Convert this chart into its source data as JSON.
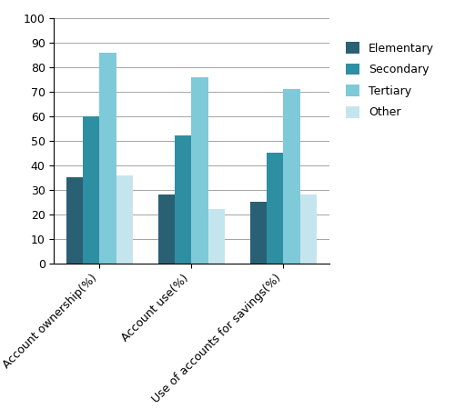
{
  "categories": [
    "Account ownership(%)",
    "Account use(%)",
    "Use of accounts for savings(%)"
  ],
  "series": {
    "Elementary": [
      35,
      28,
      25
    ],
    "Secondary": [
      60,
      52,
      45
    ],
    "Tertiary": [
      86,
      76,
      71
    ],
    "Other": [
      36,
      22,
      28
    ]
  },
  "colors": {
    "Elementary": "#2a6074",
    "Secondary": "#2e8fa3",
    "Tertiary": "#7ecad8",
    "Other": "#c5e5ee"
  },
  "ylim": [
    0,
    100
  ],
  "yticks": [
    0,
    10,
    20,
    30,
    40,
    50,
    60,
    70,
    80,
    90,
    100
  ],
  "legend_labels": [
    "Elementary",
    "Secondary",
    "Tertiary",
    "Other"
  ],
  "bar_width": 0.18,
  "figsize": [
    5.0,
    4.61
  ],
  "dpi": 100
}
